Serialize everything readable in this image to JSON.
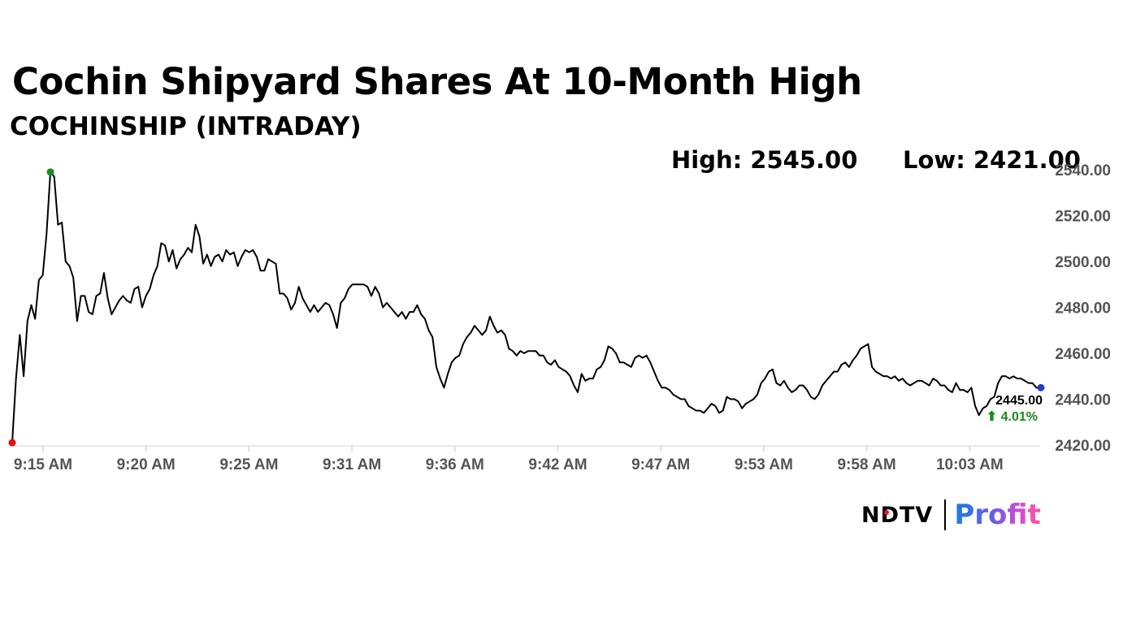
{
  "title": "Cochin Shipyard Shares At 10-Month High",
  "subtitle": "COCHINSHIP (INTRADAY)",
  "high_label": "High: 2545.00",
  "low_label": "Low: 2421.00",
  "logo": {
    "brand": "NDTV",
    "product": "Profit"
  },
  "colors": {
    "line": "#000000",
    "high_marker": "#1a8a1a",
    "low_marker": "#e01010",
    "last_marker": "#1f3fc6",
    "change": "#1a8a1a",
    "axis_text": "#555555"
  },
  "chart_data": {
    "type": "line",
    "title": "COCHINSHIP (INTRADAY)",
    "xlabel": "",
    "ylabel": "",
    "ylim": [
      2420,
      2540
    ],
    "y_ticks": [
      "2540.00",
      "2520.00",
      "2500.00",
      "2480.00",
      "2460.00",
      "2440.00",
      "2420.00"
    ],
    "x_ticks": [
      "9:15 AM",
      "9:20 AM",
      "9:25 AM",
      "9:31 AM",
      "9:36 AM",
      "9:42 AM",
      "9:47 AM",
      "9:53 AM",
      "9:58 AM",
      "10:03 AM"
    ],
    "grid": false,
    "last_price_label": "2445.00",
    "change_label": "⬆ 4.01%",
    "series": [
      {
        "values": [
          2421,
          2449,
          2468,
          2450,
          2474,
          2481,
          2475,
          2492,
          2494,
          2512,
          2539,
          2537,
          2516,
          2517,
          2500,
          2498,
          2493,
          2474,
          2485,
          2485,
          2478,
          2477,
          2485,
          2486,
          2495,
          2484,
          2477,
          2480,
          2483,
          2485,
          2483,
          2482,
          2488,
          2489,
          2480,
          2485,
          2488,
          2494,
          2498,
          2508,
          2507,
          2500,
          2505,
          2497,
          2501,
          2503,
          2506,
          2504,
          2516,
          2511,
          2499,
          2503,
          2498,
          2502,
          2503,
          2500,
          2505,
          2503,
          2504,
          2498,
          2502,
          2505,
          2504,
          2505,
          2502,
          2496,
          2496,
          2501,
          2500,
          2499,
          2486,
          2486,
          2484,
          2479,
          2482,
          2489,
          2484,
          2481,
          2478,
          2481,
          2478,
          2480,
          2482,
          2481,
          2477,
          2471,
          2482,
          2484,
          2488,
          2490,
          2490,
          2490,
          2490,
          2489,
          2485,
          2489,
          2486,
          2480,
          2482,
          2480,
          2478,
          2476,
          2478,
          2475,
          2478,
          2478,
          2481,
          2477,
          2475,
          2470,
          2467,
          2454,
          2449,
          2445,
          2451,
          2456,
          2458,
          2459,
          2464,
          2467,
          2469,
          2472,
          2470,
          2468,
          2470,
          2476,
          2472,
          2469,
          2470,
          2468,
          2462,
          2461,
          2459,
          2461,
          2460,
          2461,
          2461,
          2461,
          2459,
          2459,
          2456,
          2455,
          2457,
          2454,
          2453,
          2452,
          2450,
          2446,
          2443,
          2451,
          2448,
          2449,
          2449,
          2453,
          2454,
          2457,
          2463,
          2462,
          2460,
          2456,
          2456,
          2455,
          2454,
          2458,
          2459,
          2458,
          2459,
          2456,
          2452,
          2448,
          2445,
          2445,
          2444,
          2442,
          2441,
          2440,
          2440,
          2437,
          2436,
          2435,
          2435,
          2434,
          2436,
          2438,
          2437,
          2434,
          2435,
          2441,
          2440,
          2440,
          2439,
          2436,
          2438,
          2439,
          2440,
          2442,
          2447,
          2449,
          2452,
          2453,
          2447,
          2446,
          2448,
          2445,
          2443,
          2444,
          2446,
          2446,
          2444,
          2441,
          2440,
          2442,
          2446,
          2448,
          2450,
          2452,
          2452,
          2455,
          2456,
          2454,
          2457,
          2459,
          2462,
          2463,
          2464,
          2454,
          2452,
          2451,
          2450,
          2450,
          2449,
          2450,
          2448,
          2449,
          2447,
          2446,
          2447,
          2448,
          2448,
          2447,
          2446,
          2449,
          2448,
          2446,
          2446,
          2444,
          2443,
          2447,
          2444,
          2444,
          2443,
          2445,
          2437,
          2433,
          2436,
          2437,
          2440,
          2441,
          2447,
          2450,
          2450,
          2449,
          2450,
          2449,
          2449,
          2448,
          2447,
          2447,
          2445,
          2445
        ]
      }
    ],
    "markers": {
      "high": 2539,
      "low": 2421,
      "last": 2445
    }
  }
}
